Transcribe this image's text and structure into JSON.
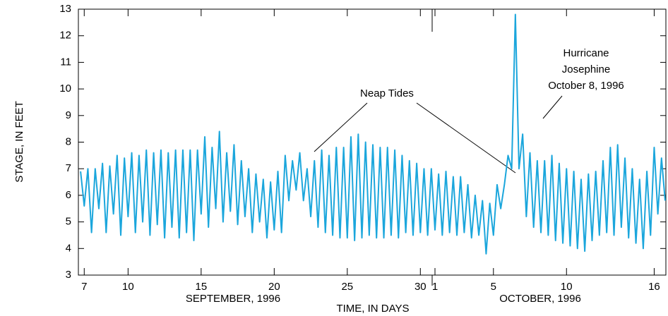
{
  "chart_data": {
    "type": "line",
    "y_label": "STAGE, IN FEET",
    "x_label": "TIME, IN DAYS",
    "month_labels": [
      "SEPTEMBER, 1996",
      "OCTOBER, 1996"
    ],
    "annotations": {
      "neap": "Neap Tides",
      "hurricane": [
        "Hurricane",
        "Josephine",
        "October 8, 1996"
      ]
    },
    "xlim": [
      6.6,
      46.8
    ],
    "ylim": [
      3,
      13
    ],
    "xticks": [
      7,
      10,
      15,
      20,
      25,
      30,
      {
        "value": 31,
        "label": "1"
      },
      {
        "value": 35,
        "label": "5"
      },
      {
        "value": 40,
        "label": "10"
      },
      {
        "value": 46,
        "label": "16"
      }
    ],
    "yticks": [
      3,
      4,
      5,
      6,
      7,
      8,
      9,
      10,
      11,
      12,
      13
    ],
    "x": [
      6.75,
      7,
      7.25,
      7.5,
      7.75,
      8,
      8.25,
      8.5,
      8.75,
      9,
      9.25,
      9.5,
      9.75,
      10,
      10.25,
      10.5,
      10.75,
      11,
      11.25,
      11.5,
      11.75,
      12,
      12.25,
      12.5,
      12.75,
      13,
      13.25,
      13.5,
      13.75,
      14,
      14.25,
      14.5,
      14.75,
      15,
      15.25,
      15.5,
      15.75,
      16,
      16.25,
      16.5,
      16.75,
      17,
      17.25,
      17.5,
      17.75,
      18,
      18.25,
      18.5,
      18.75,
      19,
      19.25,
      19.5,
      19.75,
      20,
      20.25,
      20.5,
      20.75,
      21,
      21.25,
      21.5,
      21.75,
      22,
      22.25,
      22.5,
      22.75,
      23,
      23.25,
      23.5,
      23.75,
      24,
      24.25,
      24.5,
      24.75,
      25,
      25.25,
      25.5,
      25.75,
      26,
      26.25,
      26.5,
      26.75,
      27,
      27.25,
      27.5,
      27.75,
      28,
      28.25,
      28.5,
      28.75,
      29,
      29.25,
      29.5,
      29.75,
      30,
      30.25,
      30.5,
      30.75,
      31,
      31.25,
      31.5,
      31.75,
      32,
      32.25,
      32.5,
      32.75,
      33,
      33.25,
      33.5,
      33.75,
      34,
      34.25,
      34.5,
      34.75,
      35,
      35.25,
      35.5,
      35.75,
      36,
      36.25,
      36.5,
      36.75,
      37,
      37.25,
      37.5,
      37.75,
      38,
      38.25,
      38.5,
      38.75,
      39,
      39.25,
      39.5,
      39.75,
      40,
      40.25,
      40.5,
      40.75,
      41,
      41.25,
      41.5,
      41.75,
      42,
      42.25,
      42.5,
      42.75,
      43,
      43.25,
      43.5,
      43.75,
      44,
      44.25,
      44.5,
      44.75,
      45,
      45.25,
      45.5,
      45.75,
      46,
      46.25,
      46.5,
      46.75
    ],
    "series": [
      {
        "name": "Stage",
        "color": "#1ba6dc",
        "values": [
          6.9,
          5.6,
          7.0,
          4.6,
          7.0,
          5.5,
          7.2,
          4.6,
          7.1,
          5.3,
          7.5,
          4.5,
          7.4,
          5.2,
          7.6,
          4.6,
          7.5,
          5.0,
          7.7,
          4.5,
          7.6,
          4.9,
          7.7,
          4.4,
          7.6,
          4.8,
          7.7,
          4.4,
          7.7,
          4.6,
          7.7,
          4.3,
          7.7,
          5.3,
          8.2,
          4.8,
          7.8,
          5.5,
          8.4,
          5.0,
          7.6,
          5.4,
          7.9,
          4.9,
          7.3,
          5.2,
          7.0,
          4.6,
          6.8,
          5.0,
          6.6,
          4.4,
          6.5,
          4.7,
          6.9,
          4.6,
          7.5,
          5.8,
          7.3,
          6.2,
          7.6,
          5.8,
          7.0,
          5.2,
          7.3,
          4.8,
          7.7,
          4.6,
          7.5,
          4.5,
          7.8,
          4.4,
          7.8,
          4.4,
          8.2,
          4.3,
          8.3,
          4.4,
          8.0,
          4.5,
          7.9,
          4.4,
          7.8,
          4.4,
          7.8,
          4.5,
          7.7,
          4.4,
          7.5,
          4.6,
          7.3,
          4.5,
          7.2,
          4.6,
          7.0,
          4.5,
          7.0,
          4.7,
          6.8,
          4.5,
          6.9,
          4.6,
          6.7,
          4.5,
          6.7,
          4.6,
          6.4,
          4.4,
          6.0,
          4.5,
          5.8,
          3.8,
          5.7,
          4.5,
          6.4,
          5.5,
          6.4,
          7.5,
          7.0,
          12.8,
          7.0,
          8.3,
          5.2,
          7.6,
          4.8,
          7.3,
          4.6,
          7.3,
          4.5,
          7.5,
          4.3,
          7.2,
          4.2,
          7.0,
          4.1,
          6.9,
          4.0,
          6.6,
          3.9,
          6.8,
          4.3,
          6.9,
          4.5,
          7.3,
          4.6,
          7.8,
          4.5,
          7.9,
          4.8,
          7.4,
          4.4,
          7.0,
          4.2,
          6.6,
          4.0,
          6.9,
          4.5,
          7.8,
          5.3,
          7.4,
          5.8
        ]
      }
    ]
  }
}
